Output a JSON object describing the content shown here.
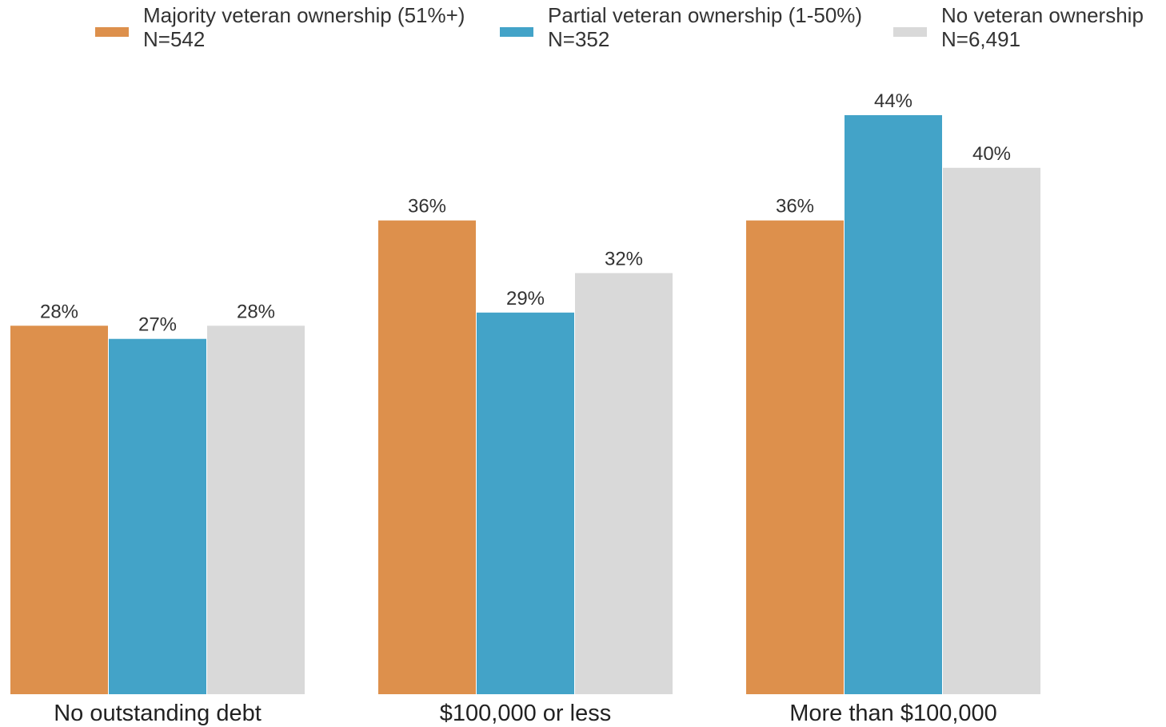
{
  "chart_data": {
    "type": "bar",
    "categories": [
      "No outstanding debt",
      "$100,000 or less",
      "More than $100,000"
    ],
    "series": [
      {
        "name": "Majority veteran ownership (51%+)",
        "n_label": "N=542",
        "color": "#dd904c",
        "values": [
          28,
          36,
          36
        ]
      },
      {
        "name": "Partial veteran ownership (1-50%)",
        "n_label": "N=352",
        "color": "#43a3c8",
        "values": [
          27,
          29,
          44
        ]
      },
      {
        "name": "No veteran ownership",
        "n_label": "N=6,491",
        "color": "#d9d9d9",
        "values": [
          28,
          32,
          40
        ]
      }
    ],
    "value_suffix": "%",
    "ylim": [
      0,
      44
    ],
    "title": "",
    "xlabel": "",
    "ylabel": "",
    "grid": false,
    "legend_position": "top"
  }
}
